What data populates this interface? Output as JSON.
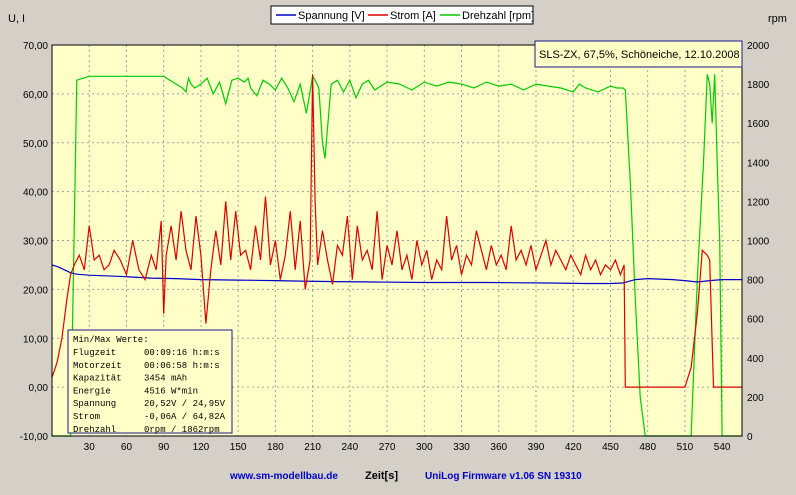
{
  "chart_data": {
    "type": "line",
    "legend": [
      "Spannung [V]",
      "Strom [A]",
      "Drehzahl [rpm]"
    ],
    "legend_position": "top",
    "annotation": "SLS-ZX, 67,5%, Schöneiche, 12.10.2008",
    "left_axis_label": "U, I",
    "right_axis_label": "rpm",
    "xlabel": "Zeit[s]",
    "footer_left": "www.sm-modellbau.de",
    "footer_right": "UniLog Firmware v1.06 SN 19310",
    "xlim": [
      0,
      556
    ],
    "ylim_left": [
      -10,
      70
    ],
    "ylim_right": [
      0,
      2000
    ],
    "x_ticks": [
      "30",
      "60",
      "90",
      "120",
      "150",
      "180",
      "210",
      "240",
      "270",
      "300",
      "330",
      "360",
      "390",
      "420",
      "450",
      "480",
      "510",
      "540"
    ],
    "y_left_ticks": [
      "-10,00",
      "0,00",
      "10,00",
      "20,00",
      "30,00",
      "40,00",
      "50,00",
      "60,00",
      "70,00"
    ],
    "y_right_ticks": [
      "0",
      "200",
      "400",
      "600",
      "800",
      "1000",
      "1200",
      "1400",
      "1600",
      "1800",
      "2000"
    ],
    "grid": true,
    "colors": {
      "spannung": "#0000cc",
      "strom": "#dd0000",
      "drehzahl": "#00cc00",
      "plot_bg": "#ffffc8",
      "grid": "#a0a0a0"
    },
    "series": [
      {
        "name": "Spannung [V]",
        "axis": "left",
        "x": [
          0,
          5,
          10,
          15,
          20,
          30,
          40,
          60,
          80,
          100,
          120,
          150,
          180,
          200,
          230,
          260,
          300,
          350,
          400,
          430,
          450,
          460,
          470,
          480,
          490,
          500,
          510,
          520,
          530,
          540,
          556
        ],
        "y": [
          25.0,
          24.6,
          24.0,
          23.4,
          23.1,
          22.9,
          22.8,
          22.6,
          22.3,
          22.2,
          22.0,
          21.9,
          21.8,
          21.7,
          21.6,
          21.5,
          21.4,
          21.4,
          21.3,
          21.2,
          21.2,
          21.3,
          22.0,
          22.2,
          22.1,
          22.0,
          21.8,
          21.5,
          21.8,
          22.0,
          22.0
        ]
      },
      {
        "name": "Strom [A]",
        "axis": "left",
        "x": [
          0,
          4,
          8,
          12,
          15,
          18,
          22,
          26,
          30,
          34,
          38,
          42,
          46,
          50,
          55,
          60,
          65,
          70,
          75,
          80,
          84,
          88,
          90,
          92,
          96,
          100,
          104,
          108,
          112,
          116,
          120,
          124,
          128,
          132,
          136,
          140,
          144,
          148,
          152,
          156,
          160,
          164,
          168,
          172,
          176,
          180,
          184,
          188,
          192,
          196,
          200,
          204,
          208,
          210,
          212,
          214,
          218,
          222,
          226,
          230,
          234,
          238,
          242,
          246,
          250,
          254,
          258,
          262,
          266,
          270,
          274,
          278,
          282,
          286,
          290,
          294,
          298,
          302,
          306,
          310,
          314,
          318,
          322,
          326,
          330,
          334,
          338,
          342,
          346,
          350,
          354,
          358,
          362,
          366,
          370,
          374,
          378,
          382,
          386,
          390,
          394,
          398,
          402,
          406,
          410,
          414,
          418,
          422,
          426,
          430,
          434,
          438,
          442,
          446,
          450,
          454,
          458,
          461,
          462,
          470,
          480,
          490,
          500,
          510,
          515,
          520,
          524,
          528,
          530,
          533,
          535,
          540,
          556
        ],
        "y": [
          2.0,
          5.0,
          10.0,
          18.0,
          23.0,
          25.0,
          27.0,
          24.0,
          33.0,
          26.0,
          27.0,
          24.0,
          25.0,
          28.0,
          26.0,
          23.0,
          30.0,
          24.0,
          22.0,
          27.0,
          24.0,
          34.0,
          15.0,
          27.0,
          33.0,
          26.0,
          36.0,
          28.0,
          24.0,
          35.0,
          27.0,
          13.0,
          24.0,
          32.0,
          25.0,
          38.0,
          26.0,
          36.0,
          27.0,
          28.0,
          24.0,
          33.0,
          26.0,
          39.0,
          25.0,
          30.0,
          22.0,
          27.0,
          36.0,
          24.0,
          34.0,
          20.0,
          26.0,
          64.0,
          38.0,
          25.0,
          32.0,
          26.0,
          21.0,
          29.0,
          27.0,
          35.0,
          22.0,
          33.0,
          26.0,
          28.0,
          24.0,
          36.0,
          22.0,
          29.0,
          25.0,
          32.0,
          24.0,
          27.0,
          22.0,
          30.0,
          25.0,
          28.0,
          22.0,
          26.0,
          24.0,
          35.0,
          26.0,
          29.0,
          23.0,
          27.0,
          25.0,
          32.0,
          28.0,
          24.0,
          29.0,
          25.0,
          27.0,
          24.0,
          33.0,
          26.0,
          28.0,
          25.0,
          29.0,
          24.0,
          27.0,
          30.0,
          25.0,
          28.0,
          26.0,
          24.0,
          27.0,
          25.0,
          23.0,
          27.0,
          24.0,
          26.0,
          23.0,
          25.0,
          24.0,
          26.0,
          23.0,
          25.0,
          0.0,
          0.0,
          0.0,
          0.0,
          0.0,
          0.0,
          4.0,
          15.0,
          28.0,
          27.0,
          26.0,
          0.0,
          0.0,
          0.0,
          0.0
        ]
      },
      {
        "name": "Drehzahl [rpm]",
        "axis": "right",
        "x": [
          0,
          5,
          10,
          15,
          20,
          30,
          40,
          50,
          60,
          70,
          80,
          90,
          95,
          100,
          105,
          108,
          110,
          112,
          115,
          120,
          125,
          130,
          135,
          140,
          145,
          150,
          155,
          158,
          160,
          165,
          170,
          175,
          180,
          185,
          190,
          195,
          200,
          205,
          210,
          212,
          215,
          218,
          220,
          225,
          230,
          235,
          240,
          245,
          250,
          255,
          260,
          270,
          280,
          290,
          300,
          310,
          320,
          330,
          340,
          350,
          360,
          370,
          380,
          390,
          400,
          410,
          420,
          425,
          430,
          440,
          450,
          455,
          460,
          462,
          466,
          470,
          474,
          478,
          490,
          510,
          515,
          520,
          525,
          528,
          530,
          532,
          534,
          536,
          538,
          540,
          556
        ],
        "y": [
          0,
          0,
          0,
          0,
          1820,
          1840,
          1840,
          1840,
          1840,
          1840,
          1840,
          1840,
          1820,
          1800,
          1780,
          1760,
          1830,
          1800,
          1780,
          1800,
          1830,
          1750,
          1810,
          1700,
          1820,
          1830,
          1810,
          1830,
          1780,
          1740,
          1820,
          1800,
          1770,
          1830,
          1780,
          1710,
          1800,
          1650,
          1840,
          1820,
          1780,
          1500,
          1420,
          1800,
          1820,
          1760,
          1820,
          1730,
          1800,
          1820,
          1770,
          1810,
          1800,
          1770,
          1810,
          1790,
          1810,
          1800,
          1780,
          1810,
          1790,
          1800,
          1770,
          1800,
          1790,
          1780,
          1760,
          1800,
          1780,
          1760,
          1790,
          1780,
          1780,
          1770,
          1300,
          700,
          200,
          0,
          0,
          0,
          0,
          800,
          1400,
          1850,
          1800,
          1600,
          1850,
          1400,
          1000,
          0,
          0
        ]
      }
    ],
    "stats_box": {
      "title": "Min/Max Werte:",
      "rows": [
        {
          "label": "Flugzeit",
          "value": "00:09:16 h:m:s"
        },
        {
          "label": "Motorzeit",
          "value": "00:06:58 h:m:s"
        },
        {
          "label": "Kapazität",
          "value": "3454 mAh"
        },
        {
          "label": "Energie",
          "value": "4516 W*min"
        },
        {
          "label": "Spannung",
          "value": "20,52V / 24,95V"
        },
        {
          "label": "Strom",
          "value": "-0,06A / 64,82A"
        },
        {
          "label": "Drehzahl",
          "value": "0rpm / 1862rpm"
        }
      ]
    }
  }
}
